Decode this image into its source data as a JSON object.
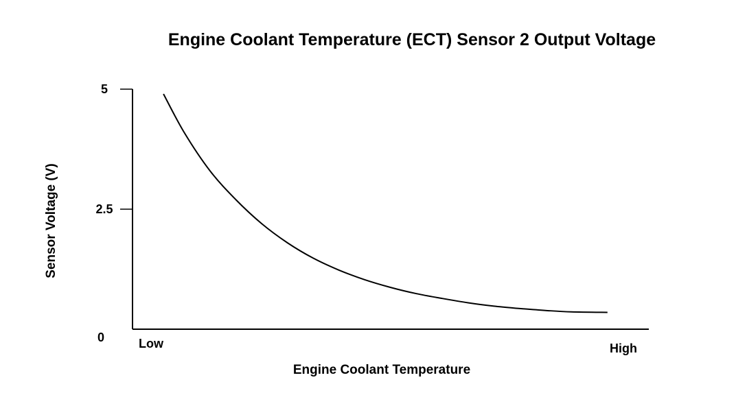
{
  "chart_data": {
    "type": "line",
    "title": "Engine Coolant Temperature (ECT) Sensor 2 Output Voltage",
    "xlabel": "Engine Coolant Temperature",
    "ylabel": "Sensor Voltage (V)",
    "x_tick_labels": [
      "Low",
      "High"
    ],
    "y_ticks": [
      {
        "value": 0,
        "label": "0"
      },
      {
        "value": 2.5,
        "label": "2.5"
      },
      {
        "value": 5,
        "label": "5"
      }
    ],
    "xlim": [
      0,
      100
    ],
    "ylim": [
      0,
      5
    ],
    "grid": false,
    "series": [
      {
        "x": [
          6,
          10,
          15,
          20,
          25,
          30,
          35,
          40,
          45,
          50,
          55,
          60,
          65,
          70,
          75,
          80,
          85,
          92
        ],
        "y": [
          4.9,
          4.1,
          3.3,
          2.7,
          2.2,
          1.8,
          1.48,
          1.23,
          1.03,
          0.87,
          0.74,
          0.64,
          0.55,
          0.48,
          0.43,
          0.39,
          0.36,
          0.35
        ]
      }
    ]
  },
  "colors": {
    "line": "#000000",
    "axis": "#000000",
    "background": "#ffffff"
  }
}
